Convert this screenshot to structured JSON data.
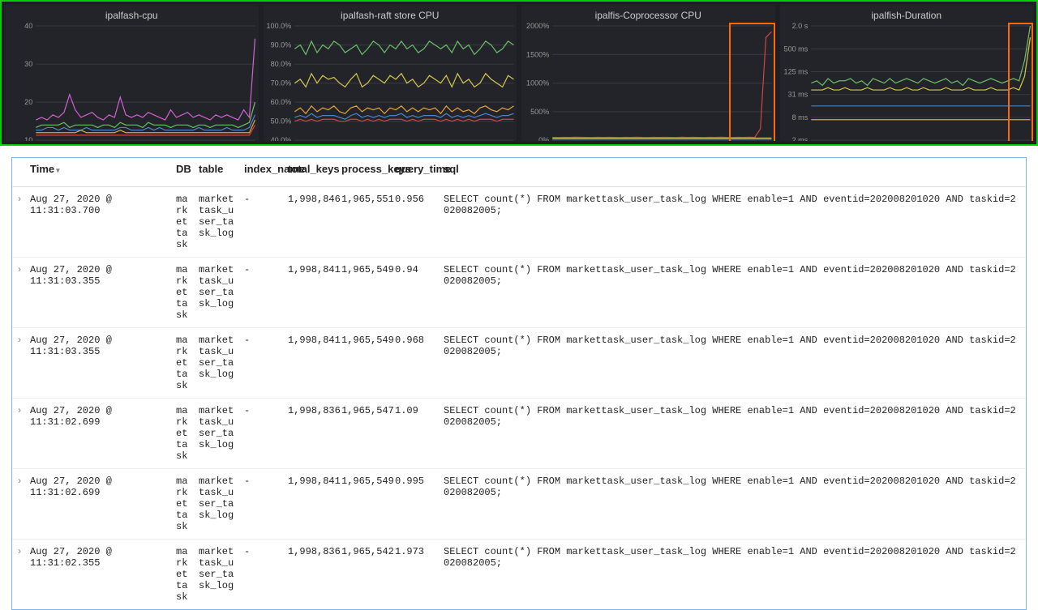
{
  "charts": {
    "panel_bg": "#23232a",
    "wrap_border": "#00d000",
    "grid_color": "#3a3a42",
    "axis_color": "#555555",
    "tick_color": "#999999",
    "panels": [
      {
        "title": "ipalfash-cpu",
        "yticks": [
          "40",
          "30",
          "20",
          "10"
        ],
        "ylim": [
          0,
          45
        ],
        "series": [
          {
            "color": "#d062d0",
            "data": [
              8,
              9,
              8,
              10,
              9,
              11,
              18,
              12,
              9,
              10,
              11,
              9,
              8,
              10,
              9,
              17,
              10,
              9,
              10,
              9,
              11,
              10,
              9,
              8,
              12,
              9,
              10,
              11,
              9,
              10,
              9,
              8,
              10,
              9,
              10,
              9,
              8,
              12,
              9,
              40
            ]
          },
          {
            "color": "#6abf69",
            "data": [
              5,
              6,
              6,
              6,
              6,
              7,
              5,
              6,
              6,
              6,
              6,
              5,
              6,
              6,
              5,
              7,
              6,
              6,
              6,
              5,
              7,
              6,
              6,
              6,
              5,
              6,
              6,
              6,
              5,
              6,
              6,
              5,
              6,
              6,
              6,
              6,
              5,
              6,
              7,
              15
            ]
          },
          {
            "color": "#4a86c7",
            "data": [
              4,
              4,
              5,
              5,
              4,
              5,
              4,
              4,
              4,
              5,
              4,
              4,
              4,
              4,
              4,
              5,
              5,
              4,
              4,
              4,
              5,
              4,
              5,
              4,
              4,
              4,
              4,
              4,
              4,
              5,
              4,
              4,
              4,
              4,
              5,
              4,
              4,
              4,
              5,
              10
            ]
          },
          {
            "color": "#e8a33d",
            "data": [
              3,
              3,
              3,
              3,
              3,
              3,
              3,
              3,
              4,
              3,
              3,
              3,
              3,
              3,
              3,
              4,
              3,
              3,
              3,
              3,
              3,
              3,
              3,
              3,
              3,
              3,
              3,
              3,
              3,
              3,
              3,
              3,
              3,
              3,
              3,
              3,
              3,
              3,
              3,
              8
            ]
          },
          {
            "color": "#d04545",
            "data": [
              2,
              2,
              2,
              2,
              2,
              2,
              2,
              2,
              2,
              2,
              2,
              2,
              2,
              2,
              2,
              2,
              2,
              2,
              2,
              2,
              2,
              2,
              2,
              2,
              2,
              2,
              2,
              2,
              2,
              2,
              2,
              2,
              2,
              2,
              2,
              2,
              2,
              2,
              2,
              6
            ]
          }
        ]
      },
      {
        "title": "ipalfash-raft store CPU",
        "yticks": [
          "100.0%",
          "90.0%",
          "80.0%",
          "70.0%",
          "60.0%",
          "50.0%",
          "40.0%"
        ],
        "ylim": [
          40,
          100
        ],
        "series": [
          {
            "color": "#6abf69",
            "data": [
              88,
              90,
              85,
              92,
              86,
              90,
              88,
              92,
              90,
              86,
              88,
              90,
              85,
              88,
              92,
              90,
              86,
              90,
              88,
              92,
              88,
              90,
              86,
              88,
              92,
              90,
              88,
              90,
              86,
              92,
              88,
              90,
              85,
              88,
              92,
              90,
              86,
              88,
              92,
              90
            ]
          },
          {
            "color": "#d4c94a",
            "data": [
              70,
              72,
              68,
              75,
              70,
              74,
              72,
              73,
              70,
              68,
              72,
              75,
              68,
              70,
              74,
              72,
              70,
              74,
              72,
              75,
              70,
              72,
              68,
              70,
              74,
              72,
              70,
              74,
              68,
              75,
              70,
              72,
              68,
              70,
              75,
              72,
              70,
              68,
              74,
              72
            ]
          },
          {
            "color": "#e8a33d",
            "data": [
              55,
              57,
              54,
              58,
              55,
              57,
              56,
              58,
              55,
              54,
              57,
              58,
              55,
              57,
              56,
              57,
              54,
              57,
              56,
              58,
              55,
              57,
              55,
              57,
              56,
              57,
              54,
              58,
              55,
              57,
              55,
              56,
              54,
              57,
              58,
              56,
              55,
              57,
              56,
              58
            ]
          },
          {
            "color": "#4a86c7",
            "data": [
              52,
              53,
              52,
              54,
              52,
              53,
              53,
              53,
              52,
              51,
              53,
              54,
              52,
              53,
              52,
              53,
              52,
              53,
              53,
              54,
              52,
              53,
              52,
              53,
              53,
              53,
              52,
              54,
              52,
              53,
              52,
              53,
              52,
              53,
              54,
              53,
              52,
              53,
              53,
              54
            ]
          },
          {
            "color": "#d04545",
            "data": [
              50,
              51,
              50,
              51,
              50,
              51,
              51,
              51,
              50,
              50,
              51,
              51,
              50,
              51,
              50,
              51,
              50,
              51,
              51,
              51,
              50,
              51,
              50,
              51,
              51,
              51,
              50,
              51,
              50,
              51,
              50,
              51,
              50,
              51,
              51,
              51,
              50,
              51,
              51,
              51
            ]
          }
        ]
      },
      {
        "title": "ipalfis-Coprocessor CPU",
        "yticks": [
          "2000%",
          "1500%",
          "1000%",
          "500%",
          "0%"
        ],
        "ylim": [
          0,
          2000
        ],
        "series": [
          {
            "color": "#d04545",
            "data": [
              50,
              48,
              52,
              50,
              55,
              52,
              50,
              48,
              52,
              50,
              52,
              50,
              48,
              52,
              50,
              55,
              50,
              48,
              52,
              50,
              52,
              50,
              48,
              55,
              50,
              52,
              50,
              48,
              52,
              50,
              55,
              50,
              48,
              52,
              50,
              55,
              50,
              200,
              1800,
              1900
            ]
          },
          {
            "color": "#6abf69",
            "data": [
              40,
              40,
              40,
              40,
              40,
              40,
              40,
              40,
              40,
              40,
              40,
              40,
              40,
              40,
              40,
              40,
              40,
              40,
              40,
              40,
              40,
              40,
              40,
              40,
              40,
              40,
              40,
              40,
              40,
              40,
              40,
              40,
              40,
              40,
              40,
              40,
              40,
              40,
              40,
              40
            ]
          },
          {
            "color": "#e8a33d",
            "data": [
              30,
              30,
              30,
              30,
              30,
              30,
              30,
              30,
              30,
              30,
              30,
              30,
              30,
              30,
              30,
              30,
              30,
              30,
              30,
              30,
              30,
              30,
              30,
              30,
              30,
              30,
              30,
              30,
              30,
              30,
              30,
              30,
              30,
              30,
              30,
              30,
              30,
              30,
              30,
              30
            ]
          },
          {
            "color": "#4a86c7",
            "data": [
              20,
              20,
              20,
              20,
              20,
              20,
              20,
              20,
              20,
              20,
              20,
              20,
              20,
              20,
              20,
              20,
              20,
              20,
              20,
              20,
              20,
              20,
              20,
              20,
              20,
              20,
              20,
              20,
              20,
              20,
              20,
              20,
              20,
              20,
              20,
              20,
              20,
              20,
              20,
              20
            ]
          }
        ],
        "highlight": {
          "left_pct": 82,
          "top_pct": 0,
          "width_pct": 18,
          "height_pct": 100
        }
      },
      {
        "title": "ipalfish-Duration",
        "yticks": [
          "2.0 s",
          "500 ms",
          "125 ms",
          "31 ms",
          "8 ms",
          "2 ms"
        ],
        "ylim": [
          0,
          5
        ],
        "log": true,
        "series": [
          {
            "color": "#6abf69",
            "data": [
              2.5,
              2.6,
              2.4,
              2.7,
              2.5,
              2.6,
              2.6,
              2.7,
              2.5,
              2.6,
              2.4,
              2.7,
              2.6,
              2.5,
              2.7,
              2.5,
              2.6,
              2.7,
              2.6,
              2.5,
              2.7,
              2.6,
              2.5,
              2.6,
              2.7,
              2.5,
              2.6,
              2.4,
              2.7,
              2.6,
              2.5,
              2.6,
              2.7,
              2.6,
              2.5,
              2.6,
              2.7,
              2.6,
              3.5,
              5.0
            ]
          },
          {
            "color": "#d4c94a",
            "data": [
              2.2,
              2.2,
              2.2,
              2.3,
              2.2,
              2.2,
              2.3,
              2.2,
              2.2,
              2.2,
              2.3,
              2.2,
              2.2,
              2.2,
              2.3,
              2.2,
              2.2,
              2.3,
              2.2,
              2.2,
              2.3,
              2.2,
              2.2,
              2.2,
              2.3,
              2.2,
              2.2,
              2.2,
              2.3,
              2.2,
              2.2,
              2.2,
              2.3,
              2.2,
              2.2,
              2.2,
              2.3,
              2.2,
              2.8,
              4.5
            ]
          },
          {
            "color": "#4a86c7",
            "data": [
              1.5,
              1.5,
              1.5,
              1.5,
              1.5,
              1.5,
              1.5,
              1.5,
              1.5,
              1.5,
              1.5,
              1.5,
              1.5,
              1.5,
              1.5,
              1.5,
              1.5,
              1.5,
              1.5,
              1.5,
              1.5,
              1.5,
              1.5,
              1.5,
              1.5,
              1.5,
              1.5,
              1.5,
              1.5,
              1.5,
              1.5,
              1.5,
              1.5,
              1.5,
              1.5,
              1.5,
              1.5,
              1.5,
              1.5,
              1.5
            ]
          },
          {
            "color": "#e8a33d",
            "data": [
              0.9,
              0.9,
              0.9,
              0.9,
              0.9,
              0.9,
              0.9,
              0.9,
              0.9,
              0.9,
              0.9,
              0.9,
              0.9,
              0.9,
              0.9,
              0.9,
              0.9,
              0.9,
              0.9,
              0.9,
              0.9,
              0.9,
              0.9,
              0.9,
              0.9,
              0.9,
              0.9,
              0.9,
              0.9,
              0.9,
              0.9,
              0.9,
              0.9,
              0.9,
              0.9,
              0.9,
              0.9,
              0.9,
              0.9,
              0.9
            ]
          }
        ],
        "highlight": {
          "left_pct": 90,
          "top_pct": 0,
          "width_pct": 10,
          "height_pct": 100
        }
      }
    ]
  },
  "table": {
    "columns": [
      "",
      "Time",
      "DB",
      "table",
      "index_name",
      "total_keys",
      "process_keys",
      "query_time",
      "sql"
    ],
    "rows": [
      {
        "time": "Aug 27, 2020 @ 11:31:03.700",
        "db": "markettask",
        "table": "markettask_user_task_log",
        "index": "-",
        "total_keys": "1,998,846",
        "process_keys": "1,965,551",
        "query_time": "0.956",
        "sql": "SELECT count(*) FROM markettask_user_task_log WHERE enable=1 AND eventid=202008201020 AND taskid=2020082005;"
      },
      {
        "time": "Aug 27, 2020 @ 11:31:03.355",
        "db": "markettask",
        "table": "markettask_user_task_log",
        "index": "-",
        "total_keys": "1,998,841",
        "process_keys": "1,965,549",
        "query_time": "0.94",
        "sql": "SELECT count(*) FROM markettask_user_task_log WHERE enable=1 AND eventid=202008201020 AND taskid=2020082005;"
      },
      {
        "time": "Aug 27, 2020 @ 11:31:03.355",
        "db": "markettask",
        "table": "markettask_user_task_log",
        "index": "-",
        "total_keys": "1,998,841",
        "process_keys": "1,965,549",
        "query_time": "0.968",
        "sql": "SELECT count(*) FROM markettask_user_task_log WHERE enable=1 AND eventid=202008201020 AND taskid=2020082005;"
      },
      {
        "time": "Aug 27, 2020 @ 11:31:02.699",
        "db": "markettask",
        "table": "markettask_user_task_log",
        "index": "-",
        "total_keys": "1,998,836",
        "process_keys": "1,965,547",
        "query_time": "1.09",
        "sql": "SELECT count(*) FROM markettask_user_task_log WHERE enable=1 AND eventid=202008201020 AND taskid=2020082005;"
      },
      {
        "time": "Aug 27, 2020 @ 11:31:02.699",
        "db": "markettask",
        "table": "markettask_user_task_log",
        "index": "-",
        "total_keys": "1,998,841",
        "process_keys": "1,965,549",
        "query_time": "0.995",
        "sql": "SELECT count(*) FROM markettask_user_task_log WHERE enable=1 AND eventid=202008201020 AND taskid=2020082005;"
      },
      {
        "time": "Aug 27, 2020 @ 11:31:02.355",
        "db": "markettask",
        "table": "markettask_user_task_log",
        "index": "-",
        "total_keys": "1,998,836",
        "process_keys": "1,965,542",
        "query_time": "1.973",
        "sql": "SELECT count(*) FROM markettask_user_task_log WHERE enable=1 AND eventid=202008201020 AND taskid=2020082005;"
      }
    ]
  }
}
